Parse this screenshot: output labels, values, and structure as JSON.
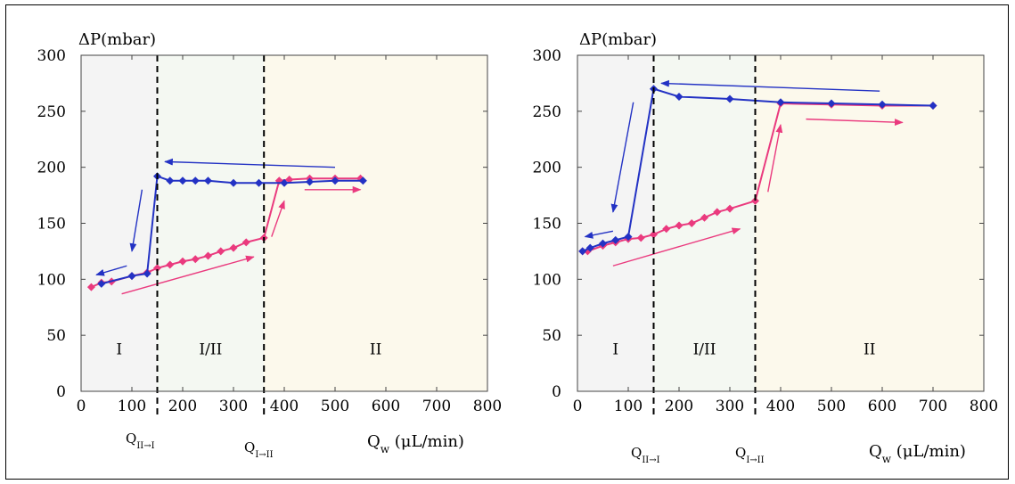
{
  "figure": {
    "charts_count": 2
  },
  "chart_data": [
    {
      "type": "line",
      "ylabel": "ΔP(mbar)",
      "xlabel": "Q_w (μL/min)",
      "xlim": [
        0,
        800
      ],
      "ylim": [
        0,
        300
      ],
      "xticks": [
        0,
        100,
        200,
        300,
        400,
        500,
        600,
        700,
        800
      ],
      "yticks": [
        0,
        50,
        100,
        150,
        200,
        250,
        300
      ],
      "grid": false,
      "regions": [
        {
          "label": "I",
          "from": 0,
          "to": 150,
          "color": "#f4f4f4"
        },
        {
          "label": "I/II",
          "from": 150,
          "to": 360,
          "color": "#f4f8f2"
        },
        {
          "label": "II",
          "from": 360,
          "to": 800,
          "color": "#fcf9ec"
        }
      ],
      "critical_lines": [
        {
          "label": "Q_II→I",
          "x": 150
        },
        {
          "label": "Q_I→II",
          "x": 360
        }
      ],
      "series": [
        {
          "color": "#ea3a7e",
          "x": [
            20,
            40,
            60,
            100,
            130,
            150,
            175,
            200,
            225,
            250,
            275,
            300,
            325,
            360,
            390,
            410,
            450,
            500,
            550
          ],
          "y": [
            93,
            97,
            98,
            103,
            106,
            110,
            113,
            116,
            118,
            121,
            125,
            128,
            133,
            137,
            188,
            189,
            190,
            190,
            190
          ]
        },
        {
          "color": "#2332c4",
          "x": [
            40,
            100,
            130,
            150,
            175,
            200,
            225,
            250,
            300,
            350,
            400,
            450,
            500,
            555
          ],
          "y": [
            96,
            103,
            105,
            192,
            188,
            188,
            188,
            188,
            186,
            186,
            186,
            187,
            188,
            188
          ]
        }
      ],
      "arrows": [
        {
          "color": "#ea3a7e",
          "from": [
            80,
            87
          ],
          "to": [
            340,
            120
          ]
        },
        {
          "color": "#ea3a7e",
          "from": [
            375,
            138
          ],
          "to": [
            400,
            170
          ]
        },
        {
          "color": "#ea3a7e",
          "from": [
            440,
            180
          ],
          "to": [
            550,
            180
          ]
        },
        {
          "color": "#2332c4",
          "from": [
            500,
            200
          ],
          "to": [
            165,
            205
          ]
        },
        {
          "color": "#2332c4",
          "from": [
            120,
            180
          ],
          "to": [
            100,
            125
          ]
        },
        {
          "color": "#2332c4",
          "from": [
            90,
            112
          ],
          "to": [
            30,
            104
          ]
        }
      ]
    },
    {
      "type": "line",
      "ylabel": "ΔP(mbar)",
      "xlabel": "Q_w (μL/min)",
      "xlim": [
        0,
        800
      ],
      "ylim": [
        0,
        300
      ],
      "xticks": [
        0,
        100,
        200,
        300,
        400,
        500,
        600,
        700,
        800
      ],
      "yticks": [
        0,
        50,
        100,
        150,
        200,
        250,
        300
      ],
      "grid": false,
      "regions": [
        {
          "label": "I",
          "from": 0,
          "to": 150,
          "color": "#f4f4f4"
        },
        {
          "label": "I/II",
          "from": 150,
          "to": 350,
          "color": "#f4f8f2"
        },
        {
          "label": "II",
          "from": 350,
          "to": 800,
          "color": "#fcf9ec"
        }
      ],
      "critical_lines": [
        {
          "label": "Q_II→I",
          "x": 150
        },
        {
          "label": "Q_I→II",
          "x": 350
        }
      ],
      "series": [
        {
          "color": "#ea3a7e",
          "x": [
            10,
            20,
            50,
            75,
            100,
            125,
            150,
            175,
            200,
            225,
            250,
            275,
            300,
            350,
            400,
            500,
            600,
            700
          ],
          "y": [
            125,
            125,
            130,
            133,
            136,
            137,
            140,
            145,
            148,
            150,
            155,
            160,
            163,
            170,
            257,
            256,
            255,
            255
          ]
        },
        {
          "color": "#2332c4",
          "x": [
            10,
            25,
            50,
            75,
            100,
            150,
            200,
            300,
            400,
            500,
            600,
            700
          ],
          "y": [
            125,
            128,
            132,
            135,
            138,
            270,
            263,
            261,
            258,
            257,
            256,
            255
          ]
        }
      ],
      "arrows": [
        {
          "color": "#ea3a7e",
          "from": [
            70,
            112
          ],
          "to": [
            320,
            145
          ]
        },
        {
          "color": "#ea3a7e",
          "from": [
            375,
            178
          ],
          "to": [
            400,
            238
          ]
        },
        {
          "color": "#ea3a7e",
          "from": [
            450,
            243
          ],
          "to": [
            640,
            240
          ]
        },
        {
          "color": "#2332c4",
          "from": [
            595,
            268
          ],
          "to": [
            165,
            275
          ]
        },
        {
          "color": "#2332c4",
          "from": [
            110,
            258
          ],
          "to": [
            70,
            160
          ]
        },
        {
          "color": "#2332c4",
          "from": [
            70,
            143
          ],
          "to": [
            15,
            138
          ]
        }
      ]
    }
  ],
  "text": {
    "left": {
      "y_title": "ΔP(mbar)",
      "x_title_main": "Q",
      "x_title_sub": "w",
      "x_title_unit": " (μL/min)",
      "crit1_main": "Q",
      "crit1_sub": "II→I",
      "crit2_main": "Q",
      "crit2_sub": "I→II"
    },
    "right": {
      "y_title": "ΔP(mbar)",
      "x_title_main": "Q",
      "x_title_sub": "w",
      "x_title_unit": " (μL/min)",
      "crit1_main": "Q",
      "crit1_sub": "II→I",
      "crit2_main": "Q",
      "crit2_sub": "I→II"
    }
  }
}
